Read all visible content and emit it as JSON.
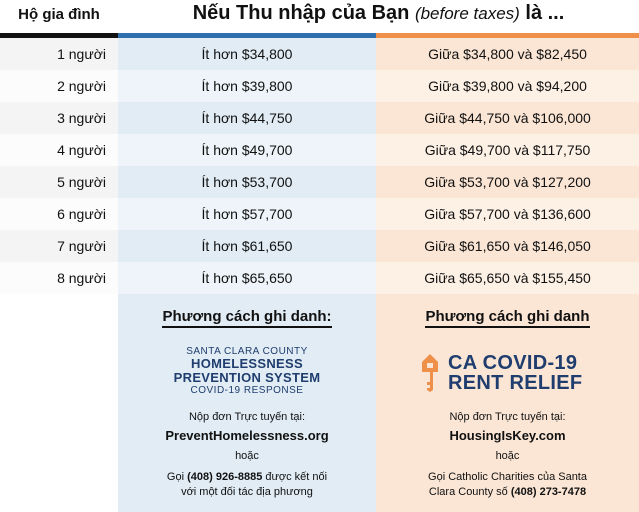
{
  "header": {
    "household_label": "Hộ gia đình",
    "title_pre": "Nếu Thu nhập của Bạn",
    "title_italic": "(before taxes)",
    "title_post": "là ..."
  },
  "colors": {
    "blue_bar": "#2f6fb0",
    "orange_bar": "#ee8f4a",
    "logo_navy": "#1f3d6e"
  },
  "rows": [
    {
      "household": "1 người",
      "less": "Ít hơn  $34,800",
      "between": "Giữa $34,800 và $82,450"
    },
    {
      "household": "2 người",
      "less": "Ít hơn  $39,800",
      "between": "Giữa $39,800 và $94,200"
    },
    {
      "household": "3 người",
      "less": "Ít hơn  $44,750",
      "between": "Giữa $44,750 và $106,000"
    },
    {
      "household": "4 người",
      "less": "Ít hơn  $49,700",
      "between": "Giữa $49,700 và $117,750"
    },
    {
      "household": "5 người",
      "less": "Ít hơn  $53,700",
      "between": "Giữa $53,700 và $127,200"
    },
    {
      "household": "6 người",
      "less": "Ít hơn  $57,700",
      "between": "Giữa $57,700 và $136,600"
    },
    {
      "household": "7 người",
      "less": "Ít hơn  $61,650",
      "between": "Giữa $61,650 và $146,050"
    },
    {
      "household": "8 người",
      "less": "Ít hơn  $65,650",
      "between": "Giữa $65,650 và $155,450"
    }
  ],
  "left_panel": {
    "title": "Phương cách ghi danh:",
    "logo_line1": "SANTA CLARA COUNTY",
    "logo_line2": "HOMELESSNESS",
    "logo_line3": "PREVENTION SYSTEM",
    "logo_line4": "COVID-19 RESPONSE",
    "apply_label": "Nộp đơn Trực tuyến tại:",
    "url": "PreventHomelessness.org",
    "or": "hoặc",
    "call_pre": "Gọi",
    "call_number": "(408) 926-8885",
    "call_post": "được kết nối",
    "call_line2": "với một đối tác địa phương"
  },
  "right_panel": {
    "title": "Phương cách ghi danh",
    "logo_line1": "CA COVID-19",
    "logo_line2": "RENT RELIEF",
    "logo_icon": "key-house-icon",
    "apply_label": "Nộp đơn Trực tuyến tại:",
    "url": "HousingIsKey.com",
    "or": "hoặc",
    "call_line1": "Gọi Catholic Charities  của Santa",
    "call_line2_pre": "Clara County số",
    "call_number": "(408) 273-7478"
  }
}
